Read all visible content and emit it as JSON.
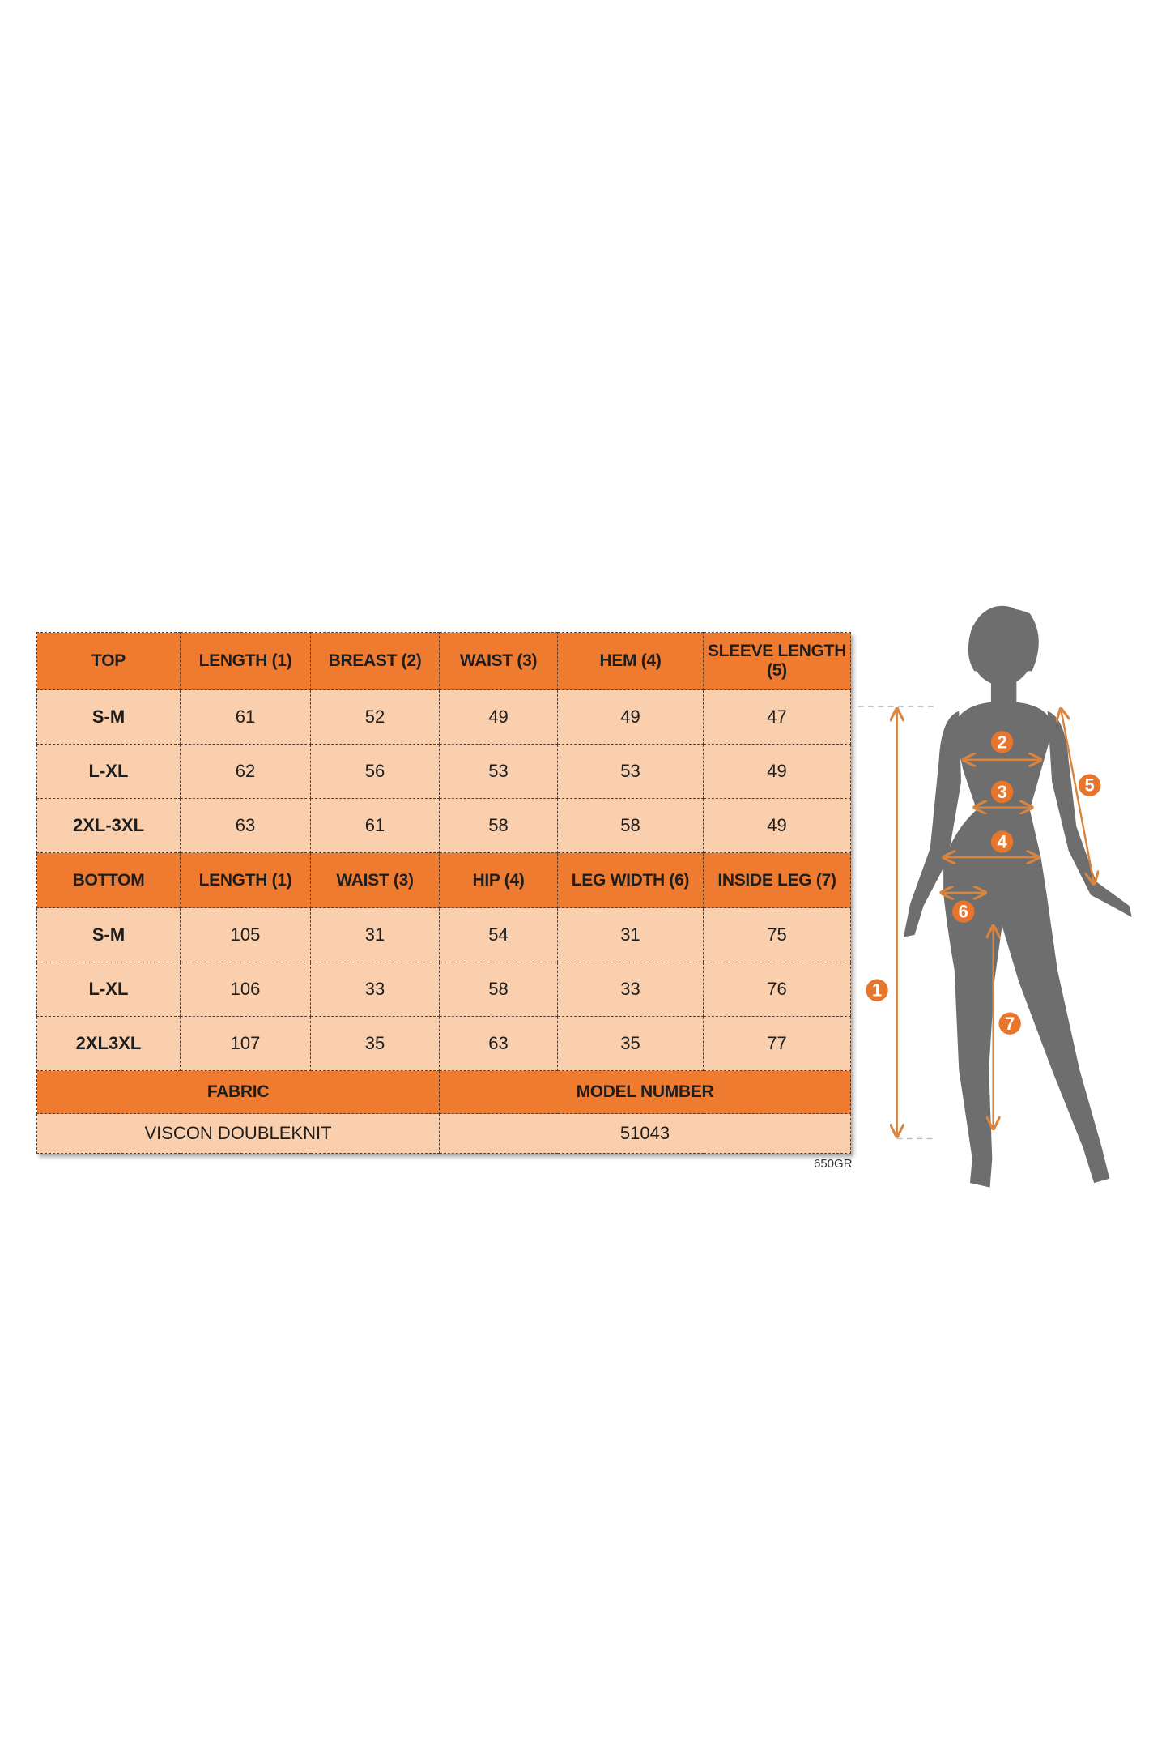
{
  "colors": {
    "header": "#ee7b30",
    "cell": "#f9cfae",
    "silhouette": "#6e6e6e",
    "arrow": "#d9843f"
  },
  "top": {
    "headers": [
      "TOP",
      "LENGTH (1)",
      "BREAST (2)",
      "WAIST (3)",
      "HEM (4)",
      "SLEEVE LENGTH (5)"
    ],
    "rows": [
      [
        "S-M",
        "61",
        "52",
        "49",
        "49",
        "47"
      ],
      [
        "L-XL",
        "62",
        "56",
        "53",
        "53",
        "49"
      ],
      [
        "2XL-3XL",
        "63",
        "61",
        "58",
        "58",
        "49"
      ]
    ]
  },
  "bottom": {
    "headers": [
      "BOTTOM",
      "LENGTH (1)",
      "WAIST (3)",
      "HIP (4)",
      "LEG WIDTH (6)",
      "INSIDE LEG (7)"
    ],
    "rows": [
      [
        "S-M",
        "105",
        "31",
        "54",
        "31",
        "75"
      ],
      [
        "L-XL",
        "106",
        "33",
        "58",
        "33",
        "76"
      ],
      [
        "2XL3XL",
        "107",
        "35",
        "63",
        "35",
        "77"
      ]
    ]
  },
  "info": {
    "fabric_label": "FABRIC",
    "fabric_value": "VISCON DOUBLEKNIT",
    "model_label": "MODEL NUMBER",
    "model_value": "51043"
  },
  "footnote": "650GR",
  "markers": [
    "1",
    "2",
    "3",
    "4",
    "5",
    "6",
    "7"
  ]
}
